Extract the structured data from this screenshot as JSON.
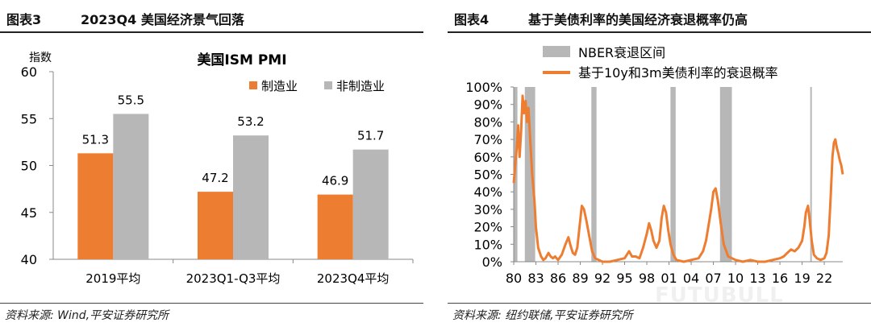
{
  "left_panel": {
    "figure_number": "图表3",
    "title": "2023Q4 美国经济景气回落",
    "source": "资料来源: Wind,平安证券研究所"
  },
  "right_panel": {
    "figure_number": "图表4",
    "title": "基于美债利率的美国经济衰退概率仍高",
    "source": "资料来源: 纽约联储,平安证券研究所"
  },
  "watermark": "FUTUBULL",
  "colors": {
    "orange": "#ED7D31",
    "gray": "#B7B7B7",
    "axis": "#888888"
  },
  "chart_data": [
    {
      "type": "bar",
      "title": "美国ISM PMI",
      "ylabel": "指数",
      "xlabel": "",
      "ylim": [
        40,
        60
      ],
      "yticks": [
        40,
        45,
        50,
        55,
        60
      ],
      "categories": [
        "2019平均",
        "2023Q1-Q3平均",
        "2023Q4平均"
      ],
      "series": [
        {
          "name": "制造业",
          "color": "#ED7D31",
          "values": [
            51.3,
            47.2,
            46.9
          ],
          "labels": [
            "51.3",
            "47.2",
            "46.9"
          ]
        },
        {
          "name": "非制造业",
          "color": "#B7B7B7",
          "values": [
            55.5,
            53.2,
            51.7
          ],
          "labels": [
            "55.5",
            "53.2",
            "51.7"
          ]
        }
      ],
      "legend": "top-right",
      "grid": false
    },
    {
      "type": "line",
      "title": "",
      "xlabel": "",
      "ylabel": "",
      "xlim": [
        1980,
        2024.5
      ],
      "ylim": [
        0,
        100
      ],
      "yticks": [
        "0%",
        "10%",
        "20%",
        "30%",
        "40%",
        "50%",
        "60%",
        "70%",
        "80%",
        "90%",
        "100%"
      ],
      "xticks": [
        {
          "year": 1980,
          "label": "80"
        },
        {
          "year": 1983,
          "label": "83"
        },
        {
          "year": 1986,
          "label": "86"
        },
        {
          "year": 1989,
          "label": "89"
        },
        {
          "year": 1992,
          "label": "92"
        },
        {
          "year": 1995,
          "label": "95"
        },
        {
          "year": 1998,
          "label": "98"
        },
        {
          "year": 2001,
          "label": "01"
        },
        {
          "year": 2004,
          "label": "04"
        },
        {
          "year": 2007,
          "label": "07"
        },
        {
          "year": 2010,
          "label": "10"
        },
        {
          "year": 2013,
          "label": "13"
        },
        {
          "year": 2016,
          "label": "16"
        },
        {
          "year": 2019,
          "label": "19"
        },
        {
          "year": 2022,
          "label": "22"
        }
      ],
      "legend": "top",
      "recessions": {
        "name": "NBER衰退区间",
        "color": "#B7B7B7",
        "periods": [
          [
            1980.0,
            1980.5
          ],
          [
            1981.5,
            1982.9
          ],
          [
            1990.5,
            1991.2
          ],
          [
            2001.2,
            2001.9
          ],
          [
            2007.9,
            2009.5
          ],
          [
            2020.1,
            2020.3
          ]
        ]
      },
      "series": [
        {
          "name": "基于10y和3m美债利率的衰退概率",
          "color": "#ED7D31",
          "x": [
            1980.0,
            1980.2,
            1980.4,
            1980.6,
            1980.8,
            1981.0,
            1981.2,
            1981.4,
            1981.6,
            1981.8,
            1982.0,
            1982.2,
            1982.5,
            1982.8,
            1983.0,
            1983.3,
            1983.7,
            1984.0,
            1984.3,
            1984.7,
            1985.0,
            1985.3,
            1985.6,
            1986.0,
            1986.5,
            1987.0,
            1987.4,
            1987.7,
            1988.0,
            1988.3,
            1988.6,
            1988.9,
            1989.2,
            1989.5,
            1989.8,
            1990.2,
            1990.6,
            1991.0,
            1991.5,
            1992.0,
            1993.0,
            1994.0,
            1995.0,
            1995.6,
            1996.0,
            1996.5,
            1997.0,
            1997.5,
            1998.0,
            1998.3,
            1998.6,
            1998.9,
            1999.3,
            1999.7,
            2000.0,
            2000.3,
            2000.6,
            2000.9,
            2001.2,
            2001.6,
            2002.0,
            2003.0,
            2004.0,
            2005.0,
            2005.6,
            2006.0,
            2006.4,
            2006.7,
            2007.0,
            2007.3,
            2007.6,
            2008.0,
            2008.4,
            2009.0,
            2010.0,
            2011.0,
            2012.0,
            2013.0,
            2014.0,
            2015.0,
            2016.0,
            2016.5,
            2017.0,
            2017.5,
            2018.0,
            2018.5,
            2019.0,
            2019.3,
            2019.5,
            2019.8,
            2020.0,
            2020.3,
            2020.6,
            2021.0,
            2021.5,
            2022.0,
            2022.3,
            2022.6,
            2022.9,
            2023.1,
            2023.3,
            2023.5,
            2023.7,
            2023.9,
            2024.1,
            2024.3,
            2024.5
          ],
          "y": [
            45,
            55,
            65,
            78,
            60,
            75,
            95,
            85,
            92,
            80,
            88,
            72,
            50,
            35,
            20,
            8,
            3,
            1,
            2,
            5,
            3,
            2,
            3,
            1,
            4,
            10,
            14,
            9,
            5,
            4,
            8,
            20,
            32,
            30,
            24,
            15,
            6,
            2,
            1,
            0,
            0,
            1,
            2,
            6,
            3,
            3,
            2,
            8,
            16,
            22,
            18,
            12,
            8,
            12,
            25,
            32,
            28,
            18,
            10,
            4,
            1,
            0,
            1,
            2,
            6,
            12,
            22,
            30,
            40,
            42,
            35,
            22,
            10,
            3,
            1,
            0,
            1,
            0,
            0,
            1,
            2,
            3,
            5,
            7,
            6,
            8,
            12,
            20,
            28,
            32,
            25,
            12,
            4,
            2,
            1,
            2,
            5,
            15,
            40,
            60,
            68,
            70,
            65,
            62,
            58,
            55,
            50
          ]
        }
      ]
    }
  ]
}
